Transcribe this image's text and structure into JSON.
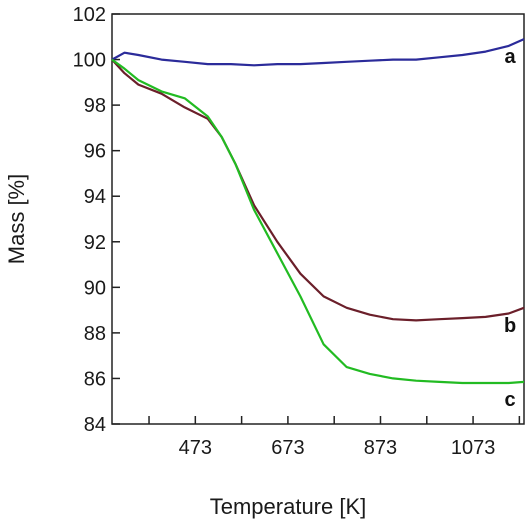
{
  "chart_data": {
    "type": "line",
    "xlabel": "Temperature [K]",
    "ylabel": "Mass [%]",
    "xlim": [
      293,
      1183
    ],
    "ylim": [
      84,
      102
    ],
    "x_ticks": [
      473,
      673,
      873,
      1073
    ],
    "x_tick_labels": [
      "473",
      "673",
      "873",
      "1073"
    ],
    "y_ticks": [
      84,
      86,
      88,
      90,
      92,
      94,
      96,
      98,
      100,
      102
    ],
    "y_tick_labels": [
      "84",
      "86",
      "88",
      "90",
      "92",
      "94",
      "96",
      "98",
      "100",
      "102"
    ],
    "grid": false,
    "legend": "inline labels at right end of each curve",
    "series": [
      {
        "name": "a",
        "color": "#2b2b9a",
        "x": [
          293,
          320,
          350,
          400,
          450,
          500,
          550,
          600,
          650,
          700,
          750,
          800,
          850,
          900,
          950,
          1000,
          1050,
          1100,
          1150,
          1183
        ],
        "y": [
          100.0,
          100.3,
          100.2,
          100.0,
          99.9,
          99.8,
          99.8,
          99.75,
          99.8,
          99.8,
          99.85,
          99.9,
          99.95,
          100.0,
          100.0,
          100.1,
          100.2,
          100.35,
          100.6,
          100.9
        ]
      },
      {
        "name": "b",
        "color": "#6b1f2a",
        "x": [
          293,
          320,
          350,
          400,
          450,
          500,
          530,
          560,
          600,
          650,
          700,
          750,
          800,
          850,
          900,
          950,
          1000,
          1050,
          1100,
          1150,
          1183
        ],
        "y": [
          100.0,
          99.4,
          98.9,
          98.5,
          97.9,
          97.4,
          96.6,
          95.4,
          93.6,
          92.0,
          90.6,
          89.6,
          89.1,
          88.8,
          88.6,
          88.55,
          88.6,
          88.65,
          88.7,
          88.85,
          89.1
        ]
      },
      {
        "name": "c",
        "color": "#22bb22",
        "x": [
          293,
          320,
          350,
          400,
          450,
          500,
          530,
          560,
          600,
          650,
          700,
          750,
          800,
          850,
          900,
          950,
          1000,
          1050,
          1100,
          1150,
          1183
        ],
        "y": [
          100.0,
          99.6,
          99.1,
          98.6,
          98.3,
          97.5,
          96.6,
          95.4,
          93.4,
          91.5,
          89.6,
          87.5,
          86.5,
          86.2,
          86.0,
          85.9,
          85.85,
          85.8,
          85.8,
          85.8,
          85.85
        ]
      }
    ],
    "annotations": [
      {
        "text": "a",
        "series": "a"
      },
      {
        "text": "b",
        "series": "b"
      },
      {
        "text": "c",
        "series": "c"
      }
    ]
  }
}
